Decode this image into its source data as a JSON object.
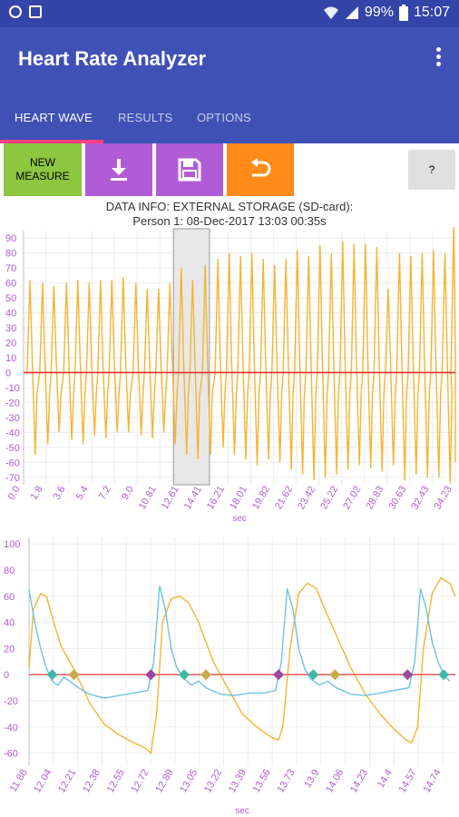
{
  "statusbar": {
    "battery": "99%",
    "time": "15:07"
  },
  "appbar": {
    "title": "Heart Rate Analyzer"
  },
  "tabs": [
    {
      "label": "HEART WAVE"
    },
    {
      "label": "RESULTS"
    },
    {
      "label": "OPTIONS"
    }
  ],
  "toolbar": {
    "new_measure_line1": "NEW",
    "new_measure_line2": "MEASURE",
    "help_label": "?"
  },
  "info": {
    "line1": "DATA INFO: EXTERNAL STORAGE (SD-card):",
    "line2": "Person 1: 08-Dec-2017 13:03 00:35s"
  },
  "colors": {
    "primary": "#3f51b5",
    "accent": "#ff4081",
    "wave": "#f5b431",
    "baseline": "#e8322b",
    "derivative": "#6ec3e0",
    "marker_teal": "#3fb8a8",
    "marker_gold": "#c9aa4a",
    "marker_purple": "#9a4a9a"
  },
  "chart_data": [
    {
      "type": "line",
      "xlabel": "sec",
      "ylabel": "",
      "xlim": [
        0,
        34.23
      ],
      "ylim": [
        -75,
        95
      ],
      "yticks": [
        90,
        80,
        70,
        60,
        50,
        40,
        30,
        20,
        10,
        0,
        -10,
        -20,
        -30,
        -40,
        -50,
        -60,
        -70
      ],
      "xticks": [
        "0.0",
        "1.8",
        "3.6",
        "5.4",
        "7.2",
        "9.0",
        "10.81",
        "12.61",
        "14.41",
        "16.21",
        "18.01",
        "19.82",
        "21.62",
        "23.42",
        "25.22",
        "27.02",
        "28.83",
        "30.63",
        "32.43",
        "34.23"
      ],
      "selection_sec": [
        11.88,
        14.74
      ],
      "baseline": 0,
      "beats": [
        {
          "t": 0.5,
          "peak": 62,
          "trough": -55
        },
        {
          "t": 1.5,
          "peak": 60,
          "trough": -48
        },
        {
          "t": 2.4,
          "peak": 58,
          "trough": -40
        },
        {
          "t": 3.4,
          "peak": 60,
          "trough": -45
        },
        {
          "t": 4.3,
          "peak": 62,
          "trough": -48
        },
        {
          "t": 5.2,
          "peak": 60,
          "trough": -42
        },
        {
          "t": 6.1,
          "peak": 62,
          "trough": -44
        },
        {
          "t": 7.0,
          "peak": 62,
          "trough": -40
        },
        {
          "t": 7.9,
          "peak": 64,
          "trough": -40
        },
        {
          "t": 8.9,
          "peak": 60,
          "trough": -42
        },
        {
          "t": 9.8,
          "peak": 56,
          "trough": -44
        },
        {
          "t": 10.7,
          "peak": 56,
          "trough": -40
        },
        {
          "t": 11.6,
          "peak": 60,
          "trough": -48
        },
        {
          "t": 12.5,
          "peak": 70,
          "trough": -55
        },
        {
          "t": 13.4,
          "peak": 62,
          "trough": -58
        },
        {
          "t": 14.4,
          "peak": 72,
          "trough": -55
        },
        {
          "t": 15.4,
          "peak": 76,
          "trough": -50
        },
        {
          "t": 16.3,
          "peak": 80,
          "trough": -55
        },
        {
          "t": 17.2,
          "peak": 78,
          "trough": -58
        },
        {
          "t": 18.1,
          "peak": 80,
          "trough": -62
        },
        {
          "t": 19.0,
          "peak": 76,
          "trough": -58
        },
        {
          "t": 19.9,
          "peak": 72,
          "trough": -60
        },
        {
          "t": 20.8,
          "peak": 76,
          "trough": -65
        },
        {
          "t": 21.7,
          "peak": 82,
          "trough": -68
        },
        {
          "t": 22.6,
          "peak": 78,
          "trough": -72
        },
        {
          "t": 23.5,
          "peak": 85,
          "trough": -70
        },
        {
          "t": 24.4,
          "peak": 80,
          "trough": -68
        },
        {
          "t": 25.3,
          "peak": 88,
          "trough": -65
        },
        {
          "t": 26.2,
          "peak": 86,
          "trough": -62
        },
        {
          "t": 27.1,
          "peak": 86,
          "trough": -64
        },
        {
          "t": 28.0,
          "peak": 84,
          "trough": -66
        },
        {
          "t": 28.9,
          "peak": 56,
          "trough": -62
        },
        {
          "t": 29.8,
          "peak": 80,
          "trough": -72
        },
        {
          "t": 30.7,
          "peak": 78,
          "trough": -68
        },
        {
          "t": 31.6,
          "peak": 80,
          "trough": -70
        },
        {
          "t": 32.5,
          "peak": 82,
          "trough": -70
        },
        {
          "t": 33.4,
          "peak": 80,
          "trough": -74
        },
        {
          "t": 34.1,
          "peak": 98,
          "trough": -60
        }
      ]
    },
    {
      "type": "line",
      "xlabel": "sec",
      "ylabel": "",
      "xlim": [
        11.88,
        14.82
      ],
      "ylim": [
        -70,
        105
      ],
      "yticks": [
        100,
        80,
        60,
        40,
        20,
        0,
        -20,
        -40,
        -60
      ],
      "xticks": [
        "11.88",
        "12.04",
        "12.21",
        "12.38",
        "12.55",
        "12.72",
        "12.89",
        "13.05",
        "13.22",
        "13.39",
        "13.56",
        "13.73",
        "13.9",
        "14.06",
        "14.23",
        "14.4",
        "14.57",
        "14.74"
      ],
      "baseline": 0,
      "series": [
        {
          "color": "#f5b431",
          "points": [
            [
              11.88,
              5
            ],
            [
              11.91,
              50
            ],
            [
              11.96,
              62
            ],
            [
              12.0,
              60
            ],
            [
              12.05,
              40
            ],
            [
              12.1,
              22
            ],
            [
              12.2,
              2
            ],
            [
              12.3,
              -22
            ],
            [
              12.4,
              -38
            ],
            [
              12.5,
              -46
            ],
            [
              12.6,
              -52
            ],
            [
              12.68,
              -56
            ],
            [
              12.72,
              -60
            ],
            [
              12.76,
              -30
            ],
            [
              12.8,
              40
            ],
            [
              12.86,
              58
            ],
            [
              12.92,
              60
            ],
            [
              12.98,
              55
            ],
            [
              13.05,
              40
            ],
            [
              13.15,
              10
            ],
            [
              13.25,
              -10
            ],
            [
              13.35,
              -30
            ],
            [
              13.45,
              -40
            ],
            [
              13.55,
              -48
            ],
            [
              13.6,
              -50
            ],
            [
              13.63,
              -40
            ],
            [
              13.68,
              20
            ],
            [
              13.74,
              62
            ],
            [
              13.8,
              70
            ],
            [
              13.86,
              66
            ],
            [
              13.92,
              50
            ],
            [
              14.0,
              30
            ],
            [
              14.1,
              5
            ],
            [
              14.2,
              -15
            ],
            [
              14.3,
              -30
            ],
            [
              14.4,
              -42
            ],
            [
              14.48,
              -50
            ],
            [
              14.52,
              -52
            ],
            [
              14.56,
              -40
            ],
            [
              14.6,
              20
            ],
            [
              14.66,
              62
            ],
            [
              14.72,
              74
            ],
            [
              14.78,
              70
            ],
            [
              14.82,
              60
            ]
          ]
        },
        {
          "color": "#6ec3e0",
          "points": [
            [
              11.88,
              65
            ],
            [
              11.92,
              40
            ],
            [
              11.96,
              20
            ],
            [
              12.0,
              5
            ],
            [
              12.04,
              -5
            ],
            [
              12.08,
              -8
            ],
            [
              12.12,
              -2
            ],
            [
              12.16,
              -5
            ],
            [
              12.22,
              -10
            ],
            [
              12.3,
              -15
            ],
            [
              12.4,
              -18
            ],
            [
              12.5,
              -16
            ],
            [
              12.6,
              -14
            ],
            [
              12.7,
              -12
            ],
            [
              12.74,
              10
            ],
            [
              12.78,
              68
            ],
            [
              12.82,
              50
            ],
            [
              12.86,
              20
            ],
            [
              12.9,
              5
            ],
            [
              12.95,
              -3
            ],
            [
              13.0,
              -8
            ],
            [
              13.05,
              -5
            ],
            [
              13.1,
              -10
            ],
            [
              13.2,
              -15
            ],
            [
              13.3,
              -16
            ],
            [
              13.4,
              -14
            ],
            [
              13.5,
              -14
            ],
            [
              13.58,
              -12
            ],
            [
              13.62,
              10
            ],
            [
              13.66,
              66
            ],
            [
              13.7,
              50
            ],
            [
              13.74,
              20
            ],
            [
              13.78,
              5
            ],
            [
              13.82,
              -3
            ],
            [
              13.88,
              -8
            ],
            [
              13.94,
              -5
            ],
            [
              14.0,
              -10
            ],
            [
              14.1,
              -15
            ],
            [
              14.2,
              -16
            ],
            [
              14.3,
              -14
            ],
            [
              14.4,
              -12
            ],
            [
              14.5,
              -10
            ],
            [
              14.54,
              10
            ],
            [
              14.58,
              66
            ],
            [
              14.62,
              50
            ],
            [
              14.66,
              25
            ],
            [
              14.7,
              10
            ],
            [
              14.74,
              0
            ],
            [
              14.78,
              -5
            ]
          ]
        }
      ],
      "markers": [
        {
          "x": 12.04,
          "color": "teal"
        },
        {
          "x": 12.19,
          "color": "gold"
        },
        {
          "x": 12.72,
          "color": "purple"
        },
        {
          "x": 12.95,
          "color": "teal"
        },
        {
          "x": 13.1,
          "color": "gold"
        },
        {
          "x": 13.6,
          "color": "purple"
        },
        {
          "x": 13.84,
          "color": "teal"
        },
        {
          "x": 13.99,
          "color": "gold"
        },
        {
          "x": 14.49,
          "color": "purple"
        },
        {
          "x": 14.74,
          "color": "teal"
        }
      ]
    }
  ]
}
